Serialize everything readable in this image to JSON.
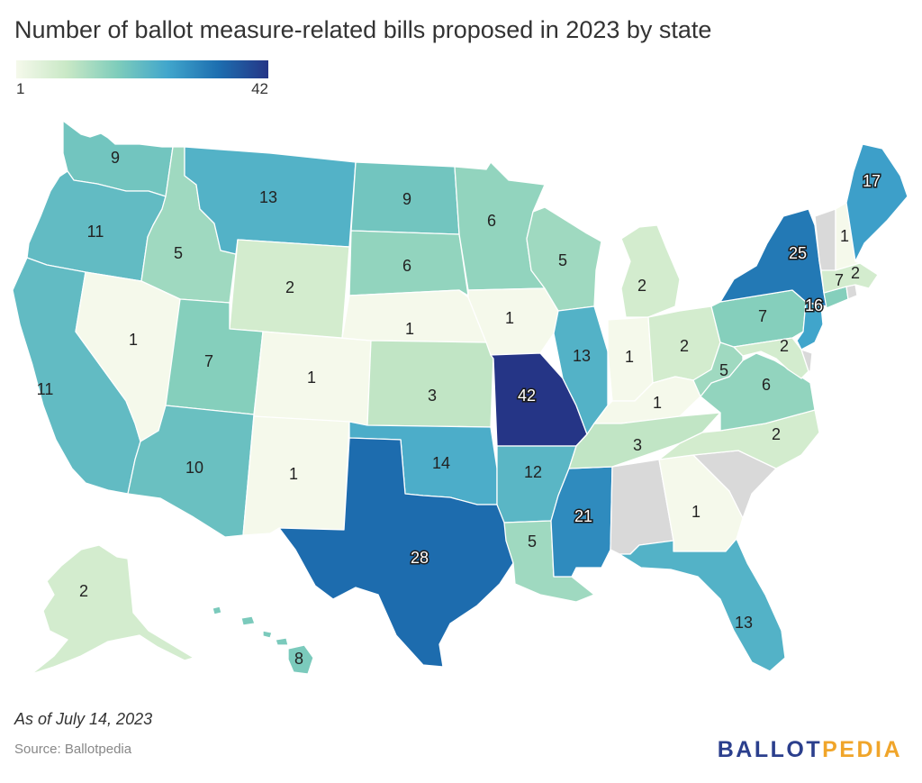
{
  "title": "Number of ballot measure-related bills proposed in 2023 by state",
  "legend": {
    "min": "1",
    "max": "42",
    "colors": [
      "#f5f9eb",
      "#c9e8c6",
      "#7fcdbb",
      "#41a6cc",
      "#1d6fb0",
      "#253586"
    ]
  },
  "no_data_color": "#d9d9d9",
  "note": "As of July 14, 2023",
  "source": "Source: Ballotpedia",
  "brand": {
    "part1": "BALLOT",
    "part2": "PEDIA",
    "color1": "#2b3f8d",
    "color2": "#f0a52a"
  },
  "chart_data": {
    "type": "choropleth",
    "title": "Number of ballot measure-related bills proposed in 2023 by state",
    "value_range": [
      1,
      42
    ],
    "states": [
      {
        "state": "WA",
        "value": 9
      },
      {
        "state": "OR",
        "value": 11
      },
      {
        "state": "CA",
        "value": 11
      },
      {
        "state": "ID",
        "value": 5
      },
      {
        "state": "NV",
        "value": 1
      },
      {
        "state": "MT",
        "value": 13
      },
      {
        "state": "WY",
        "value": 2
      },
      {
        "state": "UT",
        "value": 7
      },
      {
        "state": "AZ",
        "value": 10
      },
      {
        "state": "CO",
        "value": 1
      },
      {
        "state": "NM",
        "value": 1
      },
      {
        "state": "ND",
        "value": 9
      },
      {
        "state": "SD",
        "value": 6
      },
      {
        "state": "NE",
        "value": 1
      },
      {
        "state": "KS",
        "value": 3
      },
      {
        "state": "OK",
        "value": 14
      },
      {
        "state": "TX",
        "value": 28
      },
      {
        "state": "MN",
        "value": 6
      },
      {
        "state": "IA",
        "value": 1
      },
      {
        "state": "MO",
        "value": 42
      },
      {
        "state": "AR",
        "value": 12
      },
      {
        "state": "LA",
        "value": 5
      },
      {
        "state": "WI",
        "value": 5
      },
      {
        "state": "IL",
        "value": 13
      },
      {
        "state": "MS",
        "value": 21
      },
      {
        "state": "MI",
        "value": 2
      },
      {
        "state": "IN",
        "value": 1
      },
      {
        "state": "KY",
        "value": 1
      },
      {
        "state": "TN",
        "value": 3
      },
      {
        "state": "AL",
        "value": null
      },
      {
        "state": "OH",
        "value": 2
      },
      {
        "state": "WV",
        "value": 5
      },
      {
        "state": "VA",
        "value": 6
      },
      {
        "state": "NC",
        "value": 2
      },
      {
        "state": "SC",
        "value": null
      },
      {
        "state": "GA",
        "value": 1
      },
      {
        "state": "FL",
        "value": 13
      },
      {
        "state": "PA",
        "value": 7
      },
      {
        "state": "NY",
        "value": 25
      },
      {
        "state": "NJ",
        "value": 16
      },
      {
        "state": "MD",
        "value": 2
      },
      {
        "state": "DE",
        "value": null
      },
      {
        "state": "CT",
        "value": 7
      },
      {
        "state": "RI",
        "value": null
      },
      {
        "state": "MA",
        "value": 2
      },
      {
        "state": "VT",
        "value": null
      },
      {
        "state": "NH",
        "value": 1
      },
      {
        "state": "ME",
        "value": 17
      },
      {
        "state": "AK",
        "value": 2
      },
      {
        "state": "HI",
        "value": 8
      }
    ]
  }
}
